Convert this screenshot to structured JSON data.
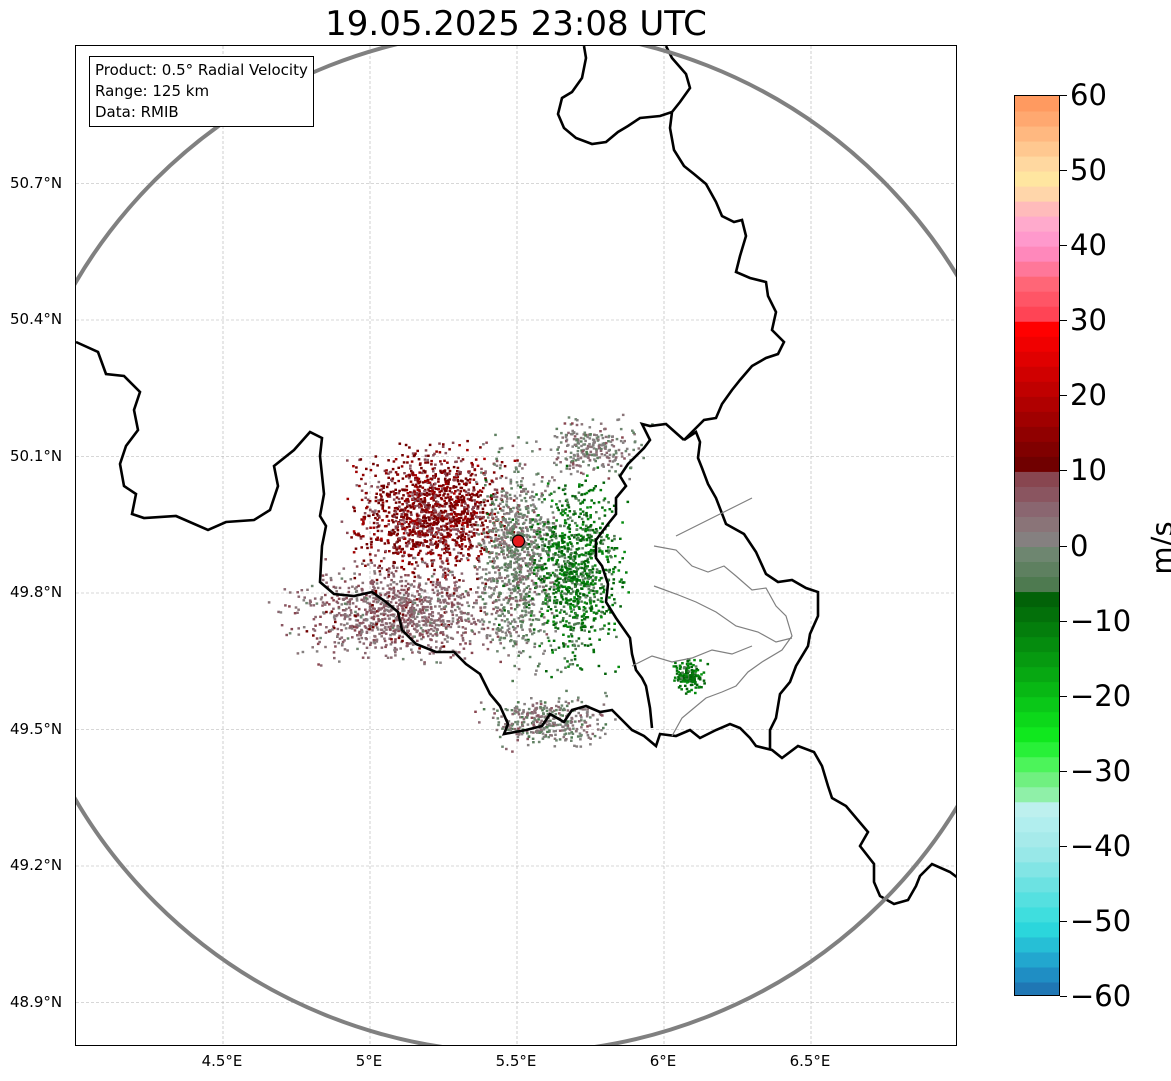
{
  "title": "19.05.2025 23:08 UTC",
  "info_box": {
    "product": "Product: 0.5° Radial Velocity",
    "range": "Range: 125 km",
    "data": "Data: RMIB"
  },
  "map": {
    "lat_ticks": [
      {
        "value": 50.7,
        "label": "50.7°N"
      },
      {
        "value": 50.4,
        "label": "50.4°N"
      },
      {
        "value": 50.1,
        "label": "50.1°N"
      },
      {
        "value": 49.8,
        "label": "49.8°N"
      },
      {
        "value": 49.5,
        "label": "49.5°N"
      },
      {
        "value": 49.2,
        "label": "49.2°N"
      },
      {
        "value": 48.9,
        "label": "48.9°N"
      }
    ],
    "lon_ticks": [
      {
        "value": 4.5,
        "label": "4.5°E"
      },
      {
        "value": 5.0,
        "label": "5°E"
      },
      {
        "value": 5.5,
        "label": "5.5°E"
      },
      {
        "value": 6.0,
        "label": "6°E"
      },
      {
        "value": 6.5,
        "label": "6.5°E"
      }
    ],
    "lon_range": [
      4.0,
      7.0
    ],
    "lat_range": [
      48.8,
      51.0
    ],
    "grid": true,
    "radar_site": {
      "lon": 5.505,
      "lat": 49.914
    },
    "range_ring_km": 125,
    "colors": {
      "ring": "#808080",
      "border": "#000000",
      "province": "#808080",
      "radar_marker": "#e31a1c"
    }
  },
  "chart_data": {
    "type": "heatmap",
    "title": "19.05.2025 23:08 UTC",
    "value_range": [
      -60,
      60
    ],
    "colorbar_label": "m/s",
    "colorbar_ticks": [
      {
        "value": 60,
        "label": "60"
      },
      {
        "value": 50,
        "label": "50"
      },
      {
        "value": 40,
        "label": "40"
      },
      {
        "value": 30,
        "label": "30"
      },
      {
        "value": 20,
        "label": "20"
      },
      {
        "value": 10,
        "label": "10"
      },
      {
        "value": 0,
        "label": "0"
      },
      {
        "value": -10,
        "label": "−10"
      },
      {
        "value": -20,
        "label": "−20"
      },
      {
        "value": -30,
        "label": "−30"
      },
      {
        "value": -40,
        "label": "−40"
      },
      {
        "value": -50,
        "label": "−50"
      },
      {
        "value": -60,
        "label": "−60"
      }
    ],
    "colorscale": [
      {
        "from": -60,
        "to": -58,
        "color": "#1f77b4"
      },
      {
        "from": -58,
        "to": -56,
        "color": "#1f8ec4"
      },
      {
        "from": -56,
        "to": -54,
        "color": "#22a7cf"
      },
      {
        "from": -54,
        "to": -52,
        "color": "#26bfd6"
      },
      {
        "from": -52,
        "to": -50,
        "color": "#2bd6dc"
      },
      {
        "from": -50,
        "to": -48,
        "color": "#3fdede"
      },
      {
        "from": -48,
        "to": -46,
        "color": "#55e0e0"
      },
      {
        "from": -46,
        "to": -44,
        "color": "#6ce2e2"
      },
      {
        "from": -44,
        "to": -42,
        "color": "#82e5e5"
      },
      {
        "from": -42,
        "to": -40,
        "color": "#98e8e8"
      },
      {
        "from": -40,
        "to": -38,
        "color": "#a6eaea"
      },
      {
        "from": -38,
        "to": -36,
        "color": "#b1eeee"
      },
      {
        "from": -36,
        "to": -34,
        "color": "#bdf0ee"
      },
      {
        "from": -34,
        "to": -32,
        "color": "#8ff0a8"
      },
      {
        "from": -32,
        "to": -30,
        "color": "#70f080"
      },
      {
        "from": -30,
        "to": -28,
        "color": "#4cf45a"
      },
      {
        "from": -28,
        "to": -26,
        "color": "#28f038"
      },
      {
        "from": -26,
        "to": -24,
        "color": "#10e81e"
      },
      {
        "from": -24,
        "to": -22,
        "color": "#0cd81a"
      },
      {
        "from": -22,
        "to": -20,
        "color": "#0ac818"
      },
      {
        "from": -20,
        "to": -18,
        "color": "#08b814"
      },
      {
        "from": -18,
        "to": -16,
        "color": "#07a812"
      },
      {
        "from": -16,
        "to": -14,
        "color": "#069a10"
      },
      {
        "from": -14,
        "to": -12,
        "color": "#058c0e"
      },
      {
        "from": -12,
        "to": -10,
        "color": "#047e0c"
      },
      {
        "from": -10,
        "to": -8,
        "color": "#03700a"
      },
      {
        "from": -8,
        "to": -6,
        "color": "#026208"
      },
      {
        "from": -6,
        "to": -4,
        "color": "#4e7a50"
      },
      {
        "from": -4,
        "to": -2,
        "color": "#5e8060"
      },
      {
        "from": -2,
        "to": 0,
        "color": "#6e8670"
      },
      {
        "from": 0,
        "to": 2,
        "color": "#858080"
      },
      {
        "from": 2,
        "to": 4,
        "color": "#8a7478"
      },
      {
        "from": 4,
        "to": 6,
        "color": "#8a6670"
      },
      {
        "from": 6,
        "to": 8,
        "color": "#8a5560"
      },
      {
        "from": 8,
        "to": 10,
        "color": "#884650"
      },
      {
        "from": 10,
        "to": 12,
        "color": "#700000"
      },
      {
        "from": 12,
        "to": 14,
        "color": "#800000"
      },
      {
        "from": 14,
        "to": 16,
        "color": "#900000"
      },
      {
        "from": 16,
        "to": 18,
        "color": "#a00000"
      },
      {
        "from": 18,
        "to": 20,
        "color": "#b00000"
      },
      {
        "from": 20,
        "to": 22,
        "color": "#c00000"
      },
      {
        "from": 22,
        "to": 24,
        "color": "#d00000"
      },
      {
        "from": 24,
        "to": 26,
        "color": "#e00000"
      },
      {
        "from": 26,
        "to": 28,
        "color": "#f00000"
      },
      {
        "from": 28,
        "to": 30,
        "color": "#ff0000"
      },
      {
        "from": 30,
        "to": 32,
        "color": "#ff4455"
      },
      {
        "from": 32,
        "to": 34,
        "color": "#ff5566"
      },
      {
        "from": 34,
        "to": 36,
        "color": "#ff6677"
      },
      {
        "from": 36,
        "to": 38,
        "color": "#ff7799"
      },
      {
        "from": 38,
        "to": 40,
        "color": "#ff88bb"
      },
      {
        "from": 40,
        "to": 42,
        "color": "#ff99cc"
      },
      {
        "from": 42,
        "to": 44,
        "color": "#ffaacc"
      },
      {
        "from": 44,
        "to": 46,
        "color": "#ffbbbb"
      },
      {
        "from": 46,
        "to": 48,
        "color": "#ffd6aa"
      },
      {
        "from": 48,
        "to": 50,
        "color": "#ffe6a0"
      },
      {
        "from": 50,
        "to": 52,
        "color": "#ffd8a0"
      },
      {
        "from": 52,
        "to": 54,
        "color": "#ffc890"
      },
      {
        "from": 54,
        "to": 56,
        "color": "#ffb880"
      },
      {
        "from": 56,
        "to": 58,
        "color": "#ffa870"
      },
      {
        "from": 58,
        "to": 60,
        "color": "#ff9a60"
      }
    ],
    "echo_regions": [
      {
        "name": "receding-core",
        "lon_center": 5.2,
        "lat_center": 49.98,
        "lon_spread": 0.22,
        "lat_spread": 0.12,
        "velocity": 12,
        "count": 1400
      },
      {
        "name": "mixed-west",
        "lon_center": 5.1,
        "lat_center": 49.76,
        "lon_spread": 0.32,
        "lat_spread": 0.09,
        "velocity": 5,
        "count": 1100
      },
      {
        "name": "near-zero-center",
        "lon_center": 5.5,
        "lat_center": 49.88,
        "lon_spread": 0.12,
        "lat_spread": 0.2,
        "velocity": 0,
        "count": 900
      },
      {
        "name": "approaching-east",
        "lon_center": 5.7,
        "lat_center": 49.85,
        "lon_spread": 0.13,
        "lat_spread": 0.18,
        "velocity": -8,
        "count": 900
      },
      {
        "name": "approaching-cell",
        "lon_center": 6.08,
        "lat_center": 49.62,
        "lon_spread": 0.05,
        "lat_spread": 0.03,
        "velocity": -9,
        "count": 150
      },
      {
        "name": "near-zero-north",
        "lon_center": 5.75,
        "lat_center": 50.12,
        "lon_spread": 0.15,
        "lat_spread": 0.06,
        "velocity": 1,
        "count": 250
      },
      {
        "name": "near-zero-south",
        "lon_center": 5.6,
        "lat_center": 49.52,
        "lon_spread": 0.18,
        "lat_spread": 0.05,
        "velocity": 1,
        "count": 350
      }
    ]
  }
}
